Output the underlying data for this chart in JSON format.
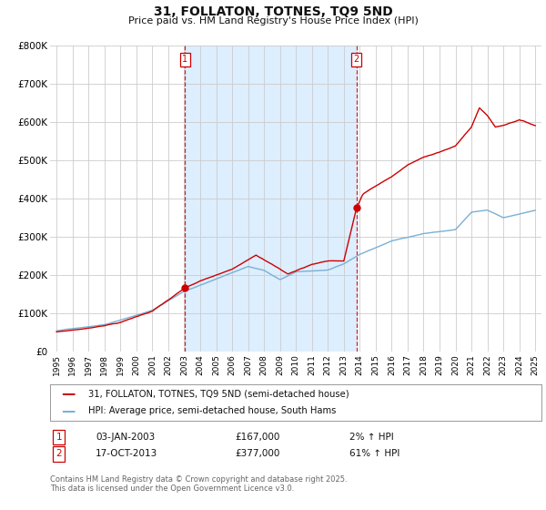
{
  "title": "31, FOLLATON, TOTNES, TQ9 5ND",
  "subtitle": "Price paid vs. HM Land Registry's House Price Index (HPI)",
  "background_color": "#ffffff",
  "plot_bg_color": "#ffffff",
  "grid_color": "#cccccc",
  "line1_color": "#cc0000",
  "line2_color": "#7ab0d4",
  "vline_color": "#cc0000",
  "shade_color": "#ddeeff",
  "annotation1": {
    "label": "1",
    "date": "03-JAN-2003",
    "price": "£167,000",
    "pct": "2% ↑ HPI"
  },
  "annotation2": {
    "label": "2",
    "date": "17-OCT-2013",
    "price": "£377,000",
    "pct": "61% ↑ HPI"
  },
  "legend1": "31, FOLLATON, TOTNES, TQ9 5ND (semi-detached house)",
  "legend2": "HPI: Average price, semi-detached house, South Hams",
  "footer": "Contains HM Land Registry data © Crown copyright and database right 2025.\nThis data is licensed under the Open Government Licence v3.0.",
  "ylim": [
    0,
    800000
  ],
  "yticks": [
    0,
    100000,
    200000,
    300000,
    400000,
    500000,
    600000,
    700000,
    800000
  ],
  "ytick_labels": [
    "£0",
    "£100K",
    "£200K",
    "£300K",
    "£400K",
    "£500K",
    "£600K",
    "£700K",
    "£800K"
  ],
  "vline1_x": 2003.04,
  "vline2_x": 2013.79,
  "marker1_y": 167000,
  "marker2_y": 377000,
  "xlim_left": 1994.6,
  "xlim_right": 2025.4
}
